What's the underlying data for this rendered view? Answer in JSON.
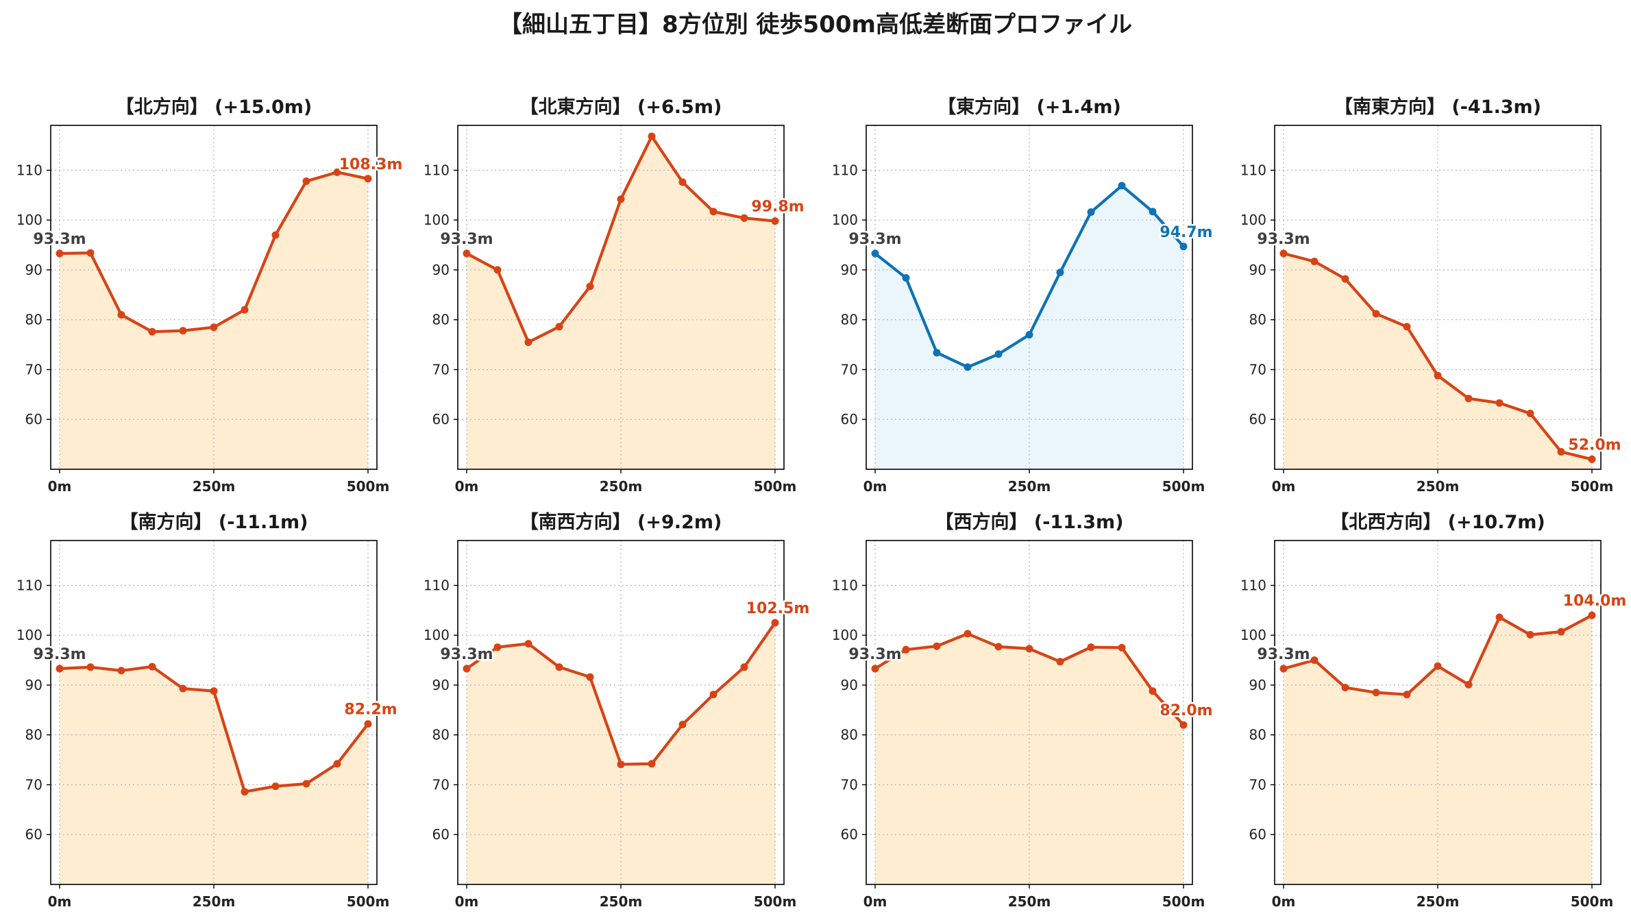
{
  "title": "【細山五丁目】8方位別 徒歩500m高低差断面プロファイル",
  "chart_data": {
    "type": "line",
    "ylim": [
      50,
      119
    ],
    "yticks": [
      60,
      70,
      80,
      90,
      100,
      110
    ],
    "x": [
      0,
      50,
      100,
      150,
      200,
      250,
      300,
      350,
      400,
      450,
      500
    ],
    "xticks": [
      {
        "value": 0,
        "label": "0m"
      },
      {
        "value": 250,
        "label": "250m"
      },
      {
        "value": 500,
        "label": "500m"
      }
    ],
    "grid": true,
    "start_label": "93.3m",
    "colors": {
      "orange": {
        "line": "#d84315",
        "fill": "#ffedd2"
      },
      "blue": {
        "line": "#0f72b5",
        "fill": "#eaf6fc"
      }
    },
    "panels": [
      {
        "title": "【北方向】 (+15.0m)",
        "color": "orange",
        "end_label": "108.3m",
        "values": [
          93.3,
          93.4,
          81.0,
          77.6,
          77.8,
          78.5,
          82.0,
          97.0,
          107.8,
          109.6,
          108.3
        ]
      },
      {
        "title": "【北東方向】 (+6.5m)",
        "color": "orange",
        "end_label": "99.8m",
        "values": [
          93.3,
          90.0,
          75.5,
          78.6,
          86.7,
          104.2,
          116.8,
          107.6,
          101.7,
          100.4,
          99.8
        ]
      },
      {
        "title": "【東方向】 (+1.4m)",
        "color": "blue",
        "end_label": "94.7m",
        "values": [
          93.3,
          88.4,
          73.4,
          70.5,
          73.1,
          77.0,
          89.5,
          101.6,
          106.9,
          101.7,
          94.7
        ]
      },
      {
        "title": "【南東方向】 (-41.3m)",
        "color": "orange",
        "end_label": "52.0m",
        "values": [
          93.3,
          91.7,
          88.2,
          81.2,
          78.6,
          68.8,
          64.2,
          63.3,
          61.2,
          53.5,
          52.0
        ]
      },
      {
        "title": "【南方向】 (-11.1m)",
        "color": "orange",
        "end_label": "82.2m",
        "values": [
          93.3,
          93.6,
          92.9,
          93.7,
          89.3,
          88.8,
          68.6,
          69.7,
          70.2,
          74.2,
          82.2
        ]
      },
      {
        "title": "【南西方向】 (+9.2m)",
        "color": "orange",
        "end_label": "102.5m",
        "values": [
          93.3,
          97.6,
          98.3,
          93.6,
          91.6,
          74.1,
          74.2,
          82.1,
          88.1,
          93.6,
          102.5
        ]
      },
      {
        "title": "【西方向】 (-11.3m)",
        "color": "orange",
        "end_label": "82.0m",
        "values": [
          93.3,
          97.1,
          97.8,
          100.3,
          97.7,
          97.3,
          94.7,
          97.6,
          97.5,
          88.8,
          82.0
        ]
      },
      {
        "title": "【北西方向】 (+10.7m)",
        "color": "orange",
        "end_label": "104.0m",
        "values": [
          93.3,
          95.0,
          89.5,
          88.5,
          88.1,
          93.8,
          90.1,
          103.6,
          100.1,
          100.7,
          104.0
        ]
      }
    ]
  }
}
